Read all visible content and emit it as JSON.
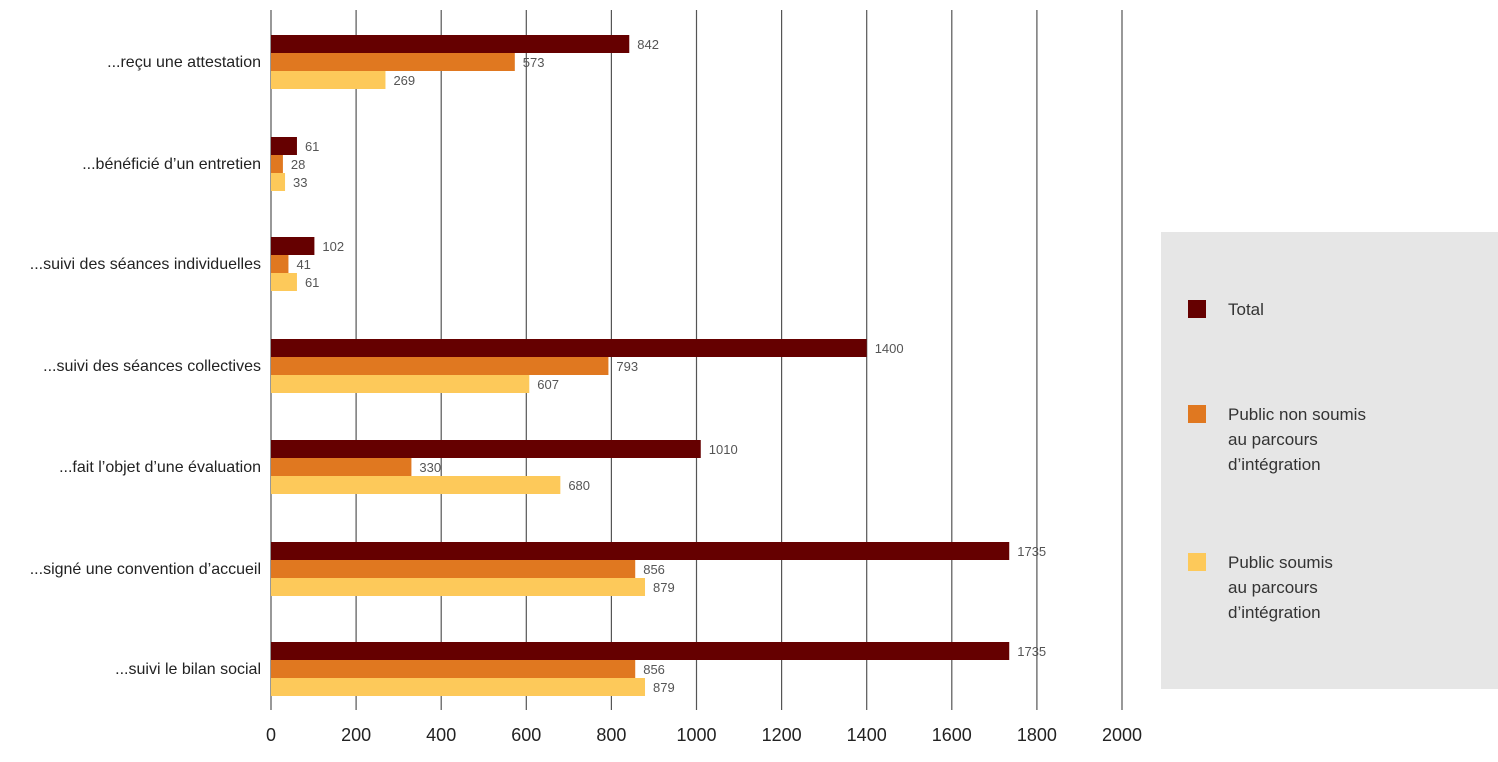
{
  "chart_data": {
    "type": "bar",
    "orientation": "horizontal",
    "title": "",
    "xlabel": "",
    "ylabel": "",
    "xlim": [
      0,
      2000
    ],
    "xticks": [
      "0",
      "200",
      "400",
      "600",
      "800",
      "1000",
      "1200",
      "1400",
      "1600",
      "1800",
      "2000"
    ],
    "grid": "vertical",
    "legend_position": "right",
    "categories": [
      "...reçu une attestation",
      "...bénéficié d’un entretien",
      "...suivi des séances individuelles",
      "...suivi des séances collectives",
      "...fait l’objet d’une évaluation",
      "...signé une convention d’accueil",
      "...suivi le bilan social"
    ],
    "series": [
      {
        "name": "Total",
        "color": "#650000",
        "values": [
          842,
          61,
          102,
          1400,
          1010,
          1735,
          1735
        ]
      },
      {
        "name": "Public non soumis au parcours d’intégration",
        "legend_lines": [
          "Public non soumis",
          "au parcours",
          "d’intégration"
        ],
        "color": "#e07820",
        "values": [
          573,
          28,
          41,
          793,
          330,
          856,
          856
        ]
      },
      {
        "name": "Public soumis au parcours d’intégration",
        "legend_lines": [
          "Public soumis",
          "au parcours",
          "d’intégration"
        ],
        "color": "#fdc95a",
        "values": [
          269,
          33,
          61,
          607,
          680,
          879,
          879
        ]
      }
    ],
    "colors": {
      "grid": "#555555",
      "legend_background": "#e6e6e6"
    }
  }
}
